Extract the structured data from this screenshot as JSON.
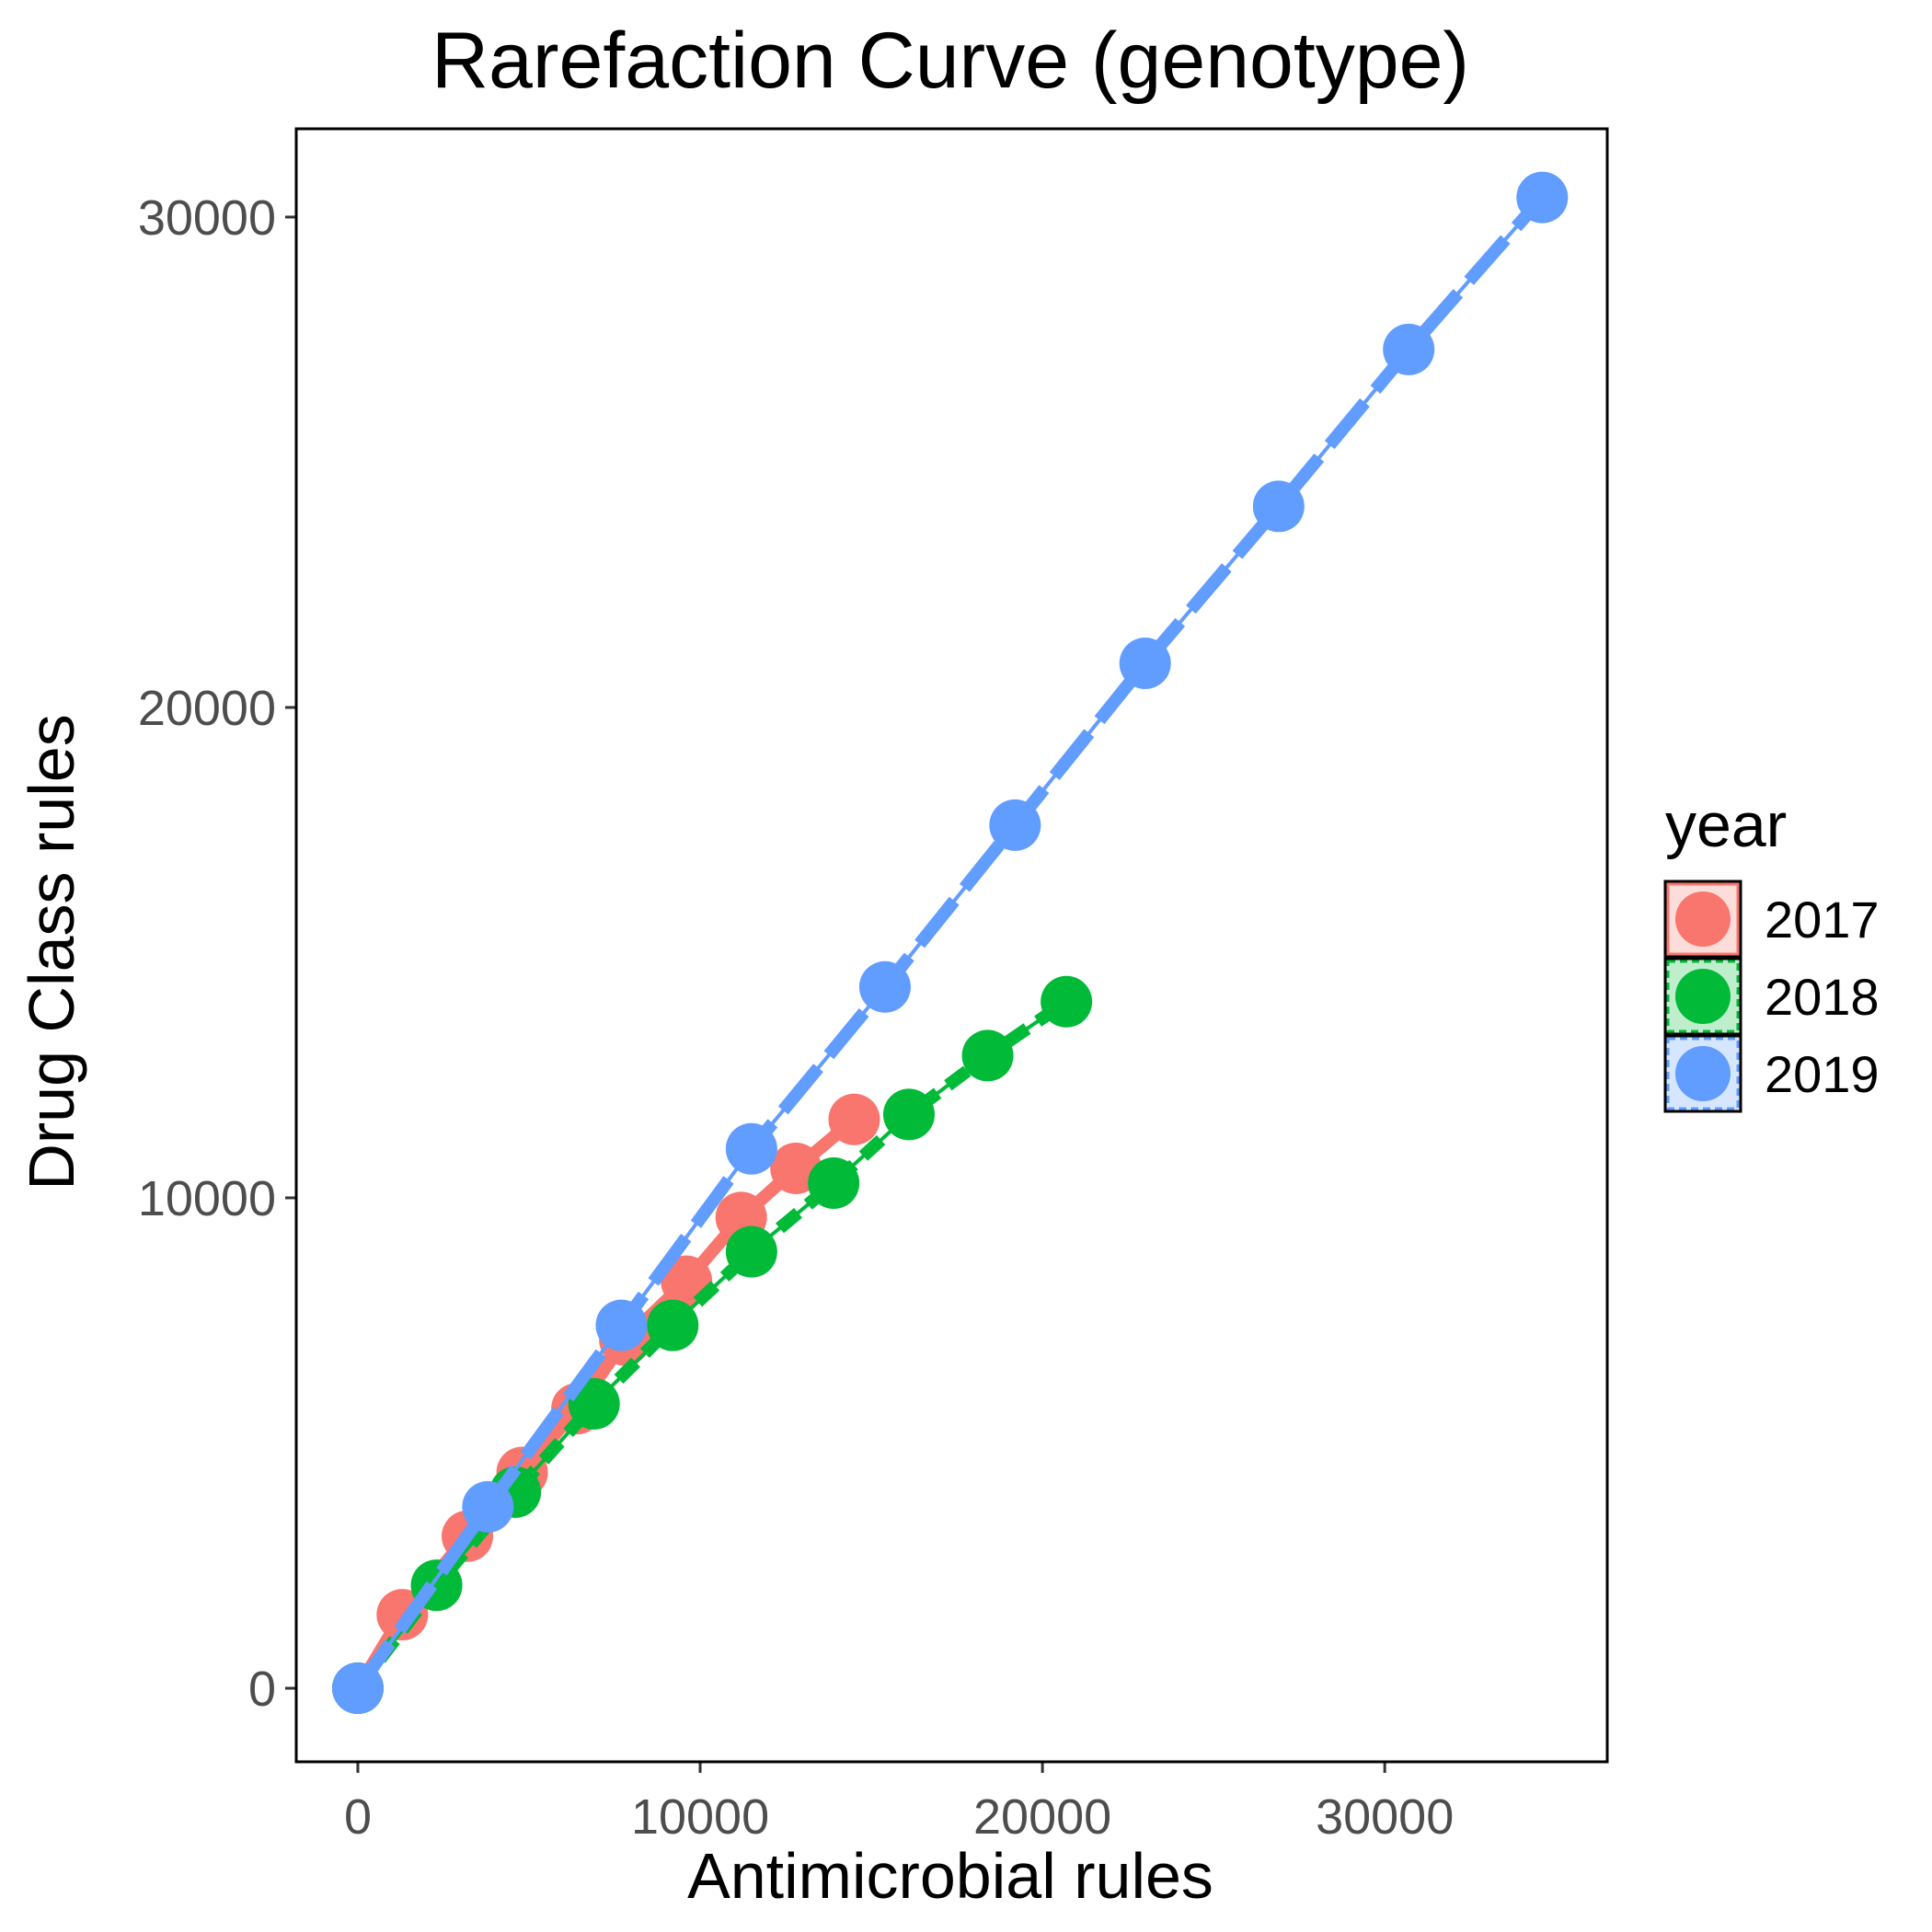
{
  "chart_data": {
    "type": "line",
    "title": "Rarefaction Curve (genotype)",
    "xlabel": "Antimicrobial rules",
    "ylabel": "Drug Class rules",
    "xlim": [
      -1800,
      36500
    ],
    "ylim": [
      -1500,
      31800
    ],
    "x_ticks": [
      0,
      10000,
      20000,
      30000
    ],
    "y_ticks": [
      0,
      10000,
      20000,
      30000
    ],
    "x_tick_labels": [
      "0",
      "10000",
      "20000",
      "30000"
    ],
    "y_tick_labels": [
      "0",
      "10000",
      "20000",
      "30000"
    ],
    "grid": false,
    "legend": {
      "title": "year",
      "position": "right"
    },
    "series": [
      {
        "name": "2017",
        "color": "#F8766D",
        "line_style": "solid",
        "points": [
          [
            0,
            0
          ],
          [
            1300,
            1500
          ],
          [
            3200,
            3100
          ],
          [
            4800,
            4400
          ],
          [
            6400,
            5700
          ],
          [
            7800,
            7100
          ],
          [
            9600,
            8300
          ],
          [
            11200,
            9600
          ],
          [
            12800,
            10600
          ],
          [
            14500,
            11600
          ]
        ]
      },
      {
        "name": "2018",
        "color": "#00BA38",
        "line_style": "dashed",
        "points": [
          [
            0,
            0
          ],
          [
            2300,
            2100
          ],
          [
            4600,
            4000
          ],
          [
            6900,
            5800
          ],
          [
            9200,
            7400
          ],
          [
            11500,
            8900
          ],
          [
            13900,
            10300
          ],
          [
            16100,
            11700
          ],
          [
            18400,
            12900
          ],
          [
            20700,
            14000
          ]
        ]
      },
      {
        "name": "2019",
        "color": "#619CFF",
        "line_style": "longdash",
        "points": [
          [
            0,
            0
          ],
          [
            3800,
            3700
          ],
          [
            7700,
            7400
          ],
          [
            11500,
            11000
          ],
          [
            15400,
            14300
          ],
          [
            19200,
            17600
          ],
          [
            23000,
            20900
          ],
          [
            26900,
            24100
          ],
          [
            30700,
            27300
          ],
          [
            34600,
            30400
          ]
        ]
      }
    ]
  }
}
